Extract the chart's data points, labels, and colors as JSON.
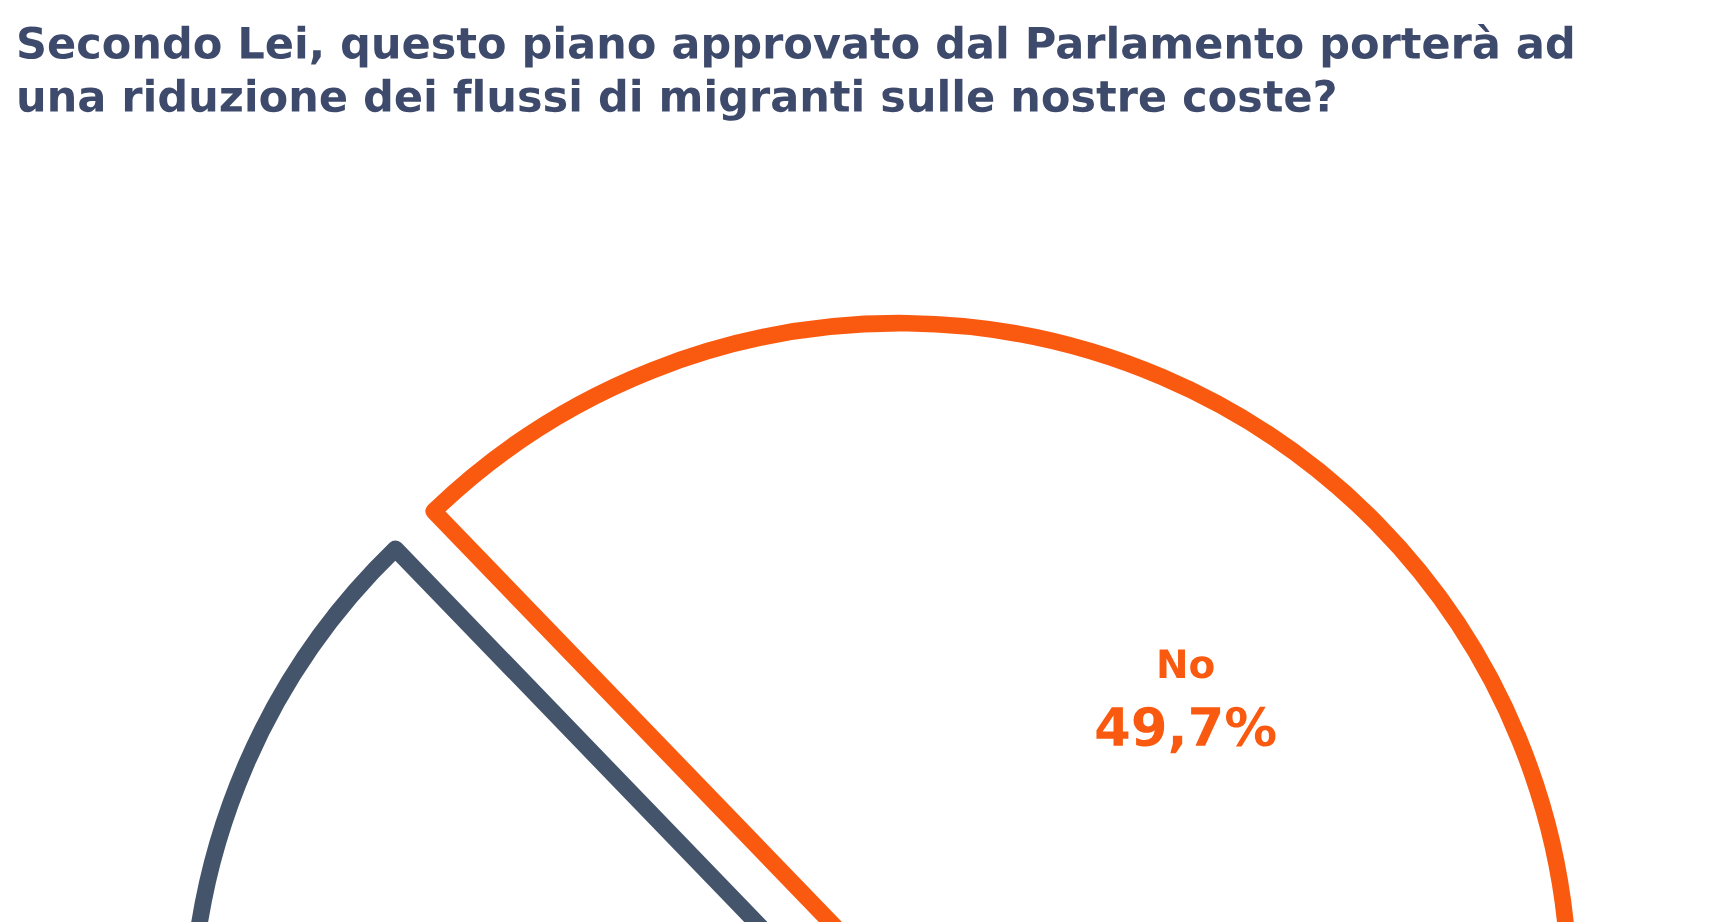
{
  "chart_data": {
    "type": "pie",
    "title": "Secondo Lei, questo piano approvato dal Parlamento porterà ad\nuna riduzione dei flussi di migranti sulle nostre coste?",
    "categories": [
      "No",
      null
    ],
    "values": [
      49.7,
      50.3
    ],
    "value_labels": [
      "49,7%",
      null
    ],
    "colors": [
      "#fa5a0f",
      "#44546a"
    ]
  }
}
